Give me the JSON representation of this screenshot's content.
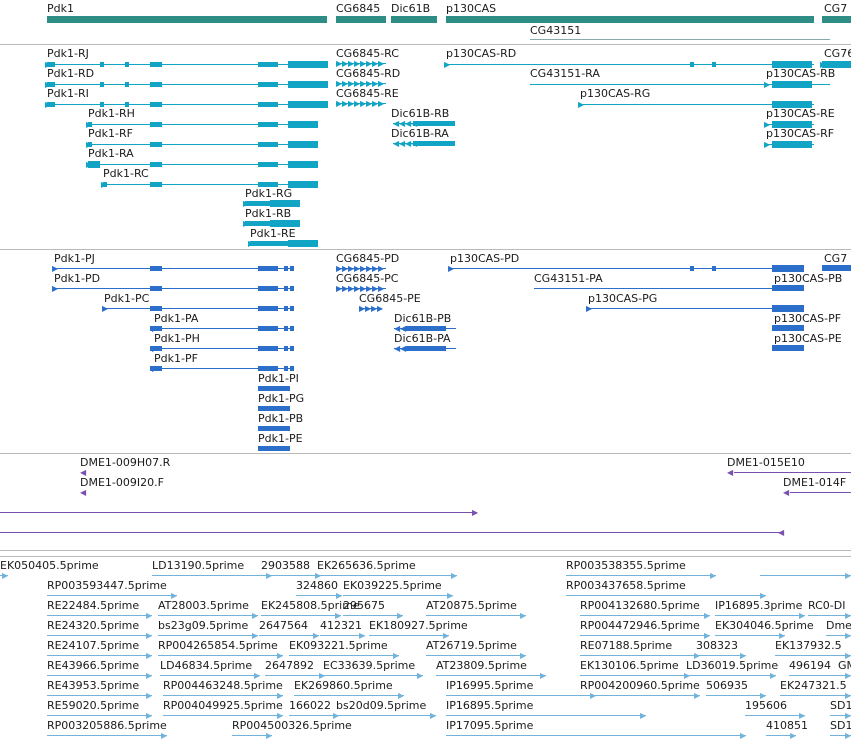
{
  "colors": {
    "gene": "#2e8e86",
    "transcript": "#11a4c4",
    "protein": "#2c6fcb",
    "clone": "#7a4fb2",
    "est": "#72b3dc"
  },
  "gene_track": {
    "genes": [
      "Pdk1",
      "CG6845",
      "Dic61B",
      "p130CAS",
      "CG43151",
      "CG7"
    ]
  },
  "transcript_track": {
    "labels": [
      "Pdk1-RJ",
      "Pdk1-RD",
      "Pdk1-RI",
      "Pdk1-RH",
      "Pdk1-RF",
      "Pdk1-RA",
      "Pdk1-RC",
      "Pdk1-RG",
      "Pdk1-RB",
      "Pdk1-RE",
      "CG6845-RC",
      "CG6845-RD",
      "CG6845-RE",
      "Dic61B-RB",
      "Dic61B-RA",
      "p130CAS-RD",
      "CG43151-RA",
      "p130CAS-RG",
      "p130CAS-RB",
      "p130CAS-RE",
      "p130CAS-RF",
      "CG76"
    ]
  },
  "protein_track": {
    "labels": [
      "Pdk1-PJ",
      "Pdk1-PD",
      "Pdk1-PC",
      "Pdk1-PA",
      "Pdk1-PH",
      "Pdk1-PF",
      "Pdk1-PI",
      "Pdk1-PG",
      "Pdk1-PB",
      "Pdk1-PE",
      "CG6845-PD",
      "CG6845-PC",
      "CG6845-PE",
      "Dic61B-PB",
      "Dic61B-PA",
      "p130CAS-PD",
      "CG43151-PA",
      "p130CAS-PG",
      "p130CAS-PB",
      "p130CAS-PF",
      "p130CAS-PE",
      "CG7"
    ]
  },
  "clone_track": {
    "labels": [
      "DME1-009H07.R",
      "DME1-009I20.F",
      "DME1-015E10",
      "DME1-014F"
    ]
  },
  "est_track": {
    "labels": [
      "EK050405.5prime",
      "LD13190.5prime",
      "2903588",
      "EK265636.5prime",
      "RP003538355.5prime",
      "RP003593447.5prime",
      "324860",
      "EK039225.5prime",
      "RP003437658.5prime",
      "RE22484.5prime",
      "AT28003.5prime",
      "EK245808.5prime",
      "295675",
      "AT20875.5prime",
      "RP004132680.5prime",
      "IP16895.3prime",
      "RC0-DI",
      "RE24320.5prime",
      "bs23g09.5prime",
      "2647564",
      "412321",
      "EK180927.5prime",
      "RP004472946.5prime",
      "EK304046.5prime",
      "Dme",
      "RE24107.5prime",
      "RP004265854.5prime",
      "EK093221.5prime",
      "AT26719.5prime",
      "RE07188.5prime",
      "308323",
      "EK137932.5",
      "RE43966.5prime",
      "LD46834.5prime",
      "2647892",
      "EC33639.5prime",
      "AT23809.5prime",
      "EK130106.5prime",
      "LD36019.5prime",
      "496194",
      "GM",
      "RE43953.5prime",
      "RP004463248.5prime",
      "EK269860.5prime",
      "IP16995.5prime",
      "RP004200960.5prime",
      "506935",
      "EK247321.5",
      "RE59020.5prime",
      "RP004049925.5prime",
      "166022",
      "bs20d09.5prime",
      "IP16895.5prime",
      "195606",
      "SD1",
      "RP003205886.5prime",
      "RP004500326.5prime",
      "IP17095.5prime",
      "410851",
      "SD1"
    ]
  }
}
